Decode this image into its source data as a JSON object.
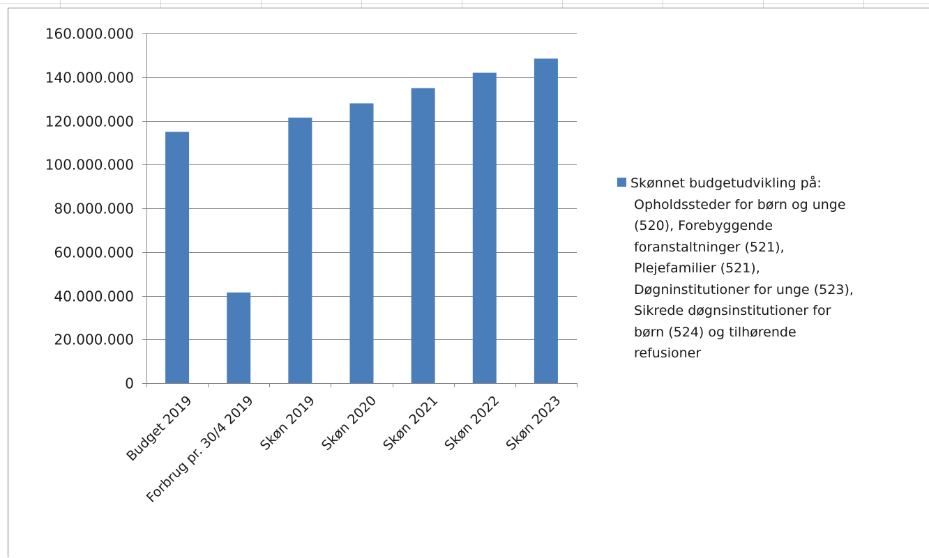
{
  "chart_data": {
    "type": "bar",
    "title": "",
    "xlabel": "",
    "ylabel": "",
    "categories": [
      "Budget 2019",
      "Forbrug pr. 30/4 2019",
      "Skøn 2019",
      "Skøn 2020",
      "Skøn 2021",
      "Skøn 2022",
      "Skøn 2023"
    ],
    "series": [
      {
        "name": "Skønnet budgetudvikling på: Opholdssteder for børn og unge (520), Forebyggende foranstaltninger (521), Plejefamilier (521), Døgninstitutioner for unge (523), Sikrede døgnsinstitutioner for børn (524) og tilhørende refusioner",
        "values": [
          115000000,
          41500000,
          121500000,
          128000000,
          135000000,
          142000000,
          148500000
        ],
        "color": "#4a7ebb"
      }
    ],
    "ylim": [
      0,
      160000000
    ],
    "yticks": [
      "0",
      "20.000.000",
      "40.000.000",
      "60.000.000",
      "80.000.000",
      "100.000.000",
      "120.000.000",
      "140.000.000",
      "160.000.000"
    ],
    "grid": true,
    "legend_position": "right"
  },
  "legend": {
    "lines": [
      "Skønnet budgetudvikling på:",
      "Opholdssteder for børn og unge",
      "(520), Forebyggende",
      "foranstaltninger (521),",
      "Plejefamilier (521),",
      "Døgninstitutioner for unge (523),",
      "Sikrede døgnsinstitutioner for",
      "børn (524) og tilhørende",
      "refusioner"
    ]
  }
}
